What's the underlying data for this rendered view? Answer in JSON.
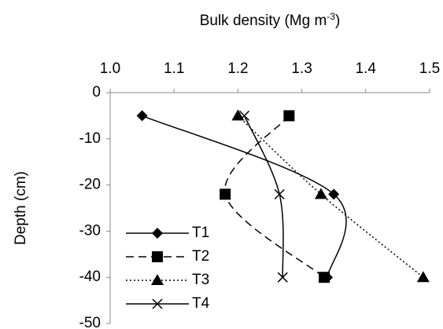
{
  "chart_data": {
    "type": "line",
    "xlabel_parts": [
      "Bulk density (Mg m",
      "-3",
      ")"
    ],
    "ylabel": "Depth (cm)",
    "xlim": [
      1.0,
      1.5
    ],
    "xticks": [
      {
        "value": 1.0,
        "label": "1.0"
      },
      {
        "value": 1.1,
        "label": "1.1"
      },
      {
        "value": 1.2,
        "label": "1.2"
      },
      {
        "value": 1.3,
        "label": "1.3"
      },
      {
        "value": 1.4,
        "label": "1.4"
      },
      {
        "value": 1.5,
        "label": "1.5"
      }
    ],
    "ylim": [
      -50,
      0
    ],
    "yticks": [
      0,
      -10,
      -20,
      -30,
      -40,
      -50
    ],
    "legend": "lower left",
    "series": [
      {
        "name": "T1",
        "color": "#000000",
        "dash": "solid",
        "marker": "diamond",
        "x": [
          1.05,
          1.35,
          1.34
        ],
        "values": [
          -5,
          -22,
          -40
        ]
      },
      {
        "name": "T2",
        "color": "#000000",
        "dash": "dashed",
        "marker": "square",
        "x": [
          1.28,
          1.18,
          1.335
        ],
        "values": [
          -5,
          -22,
          -40
        ]
      },
      {
        "name": "T3",
        "color": "#000000",
        "dash": "dotted",
        "marker": "triangle",
        "x": [
          1.2,
          1.33,
          1.49
        ],
        "values": [
          -5,
          -22,
          -40
        ]
      },
      {
        "name": "T4",
        "color": "#000000",
        "dash": "solid",
        "marker": "x",
        "x": [
          1.21,
          1.265,
          1.27
        ],
        "values": [
          -5,
          -22,
          -40
        ]
      }
    ]
  }
}
